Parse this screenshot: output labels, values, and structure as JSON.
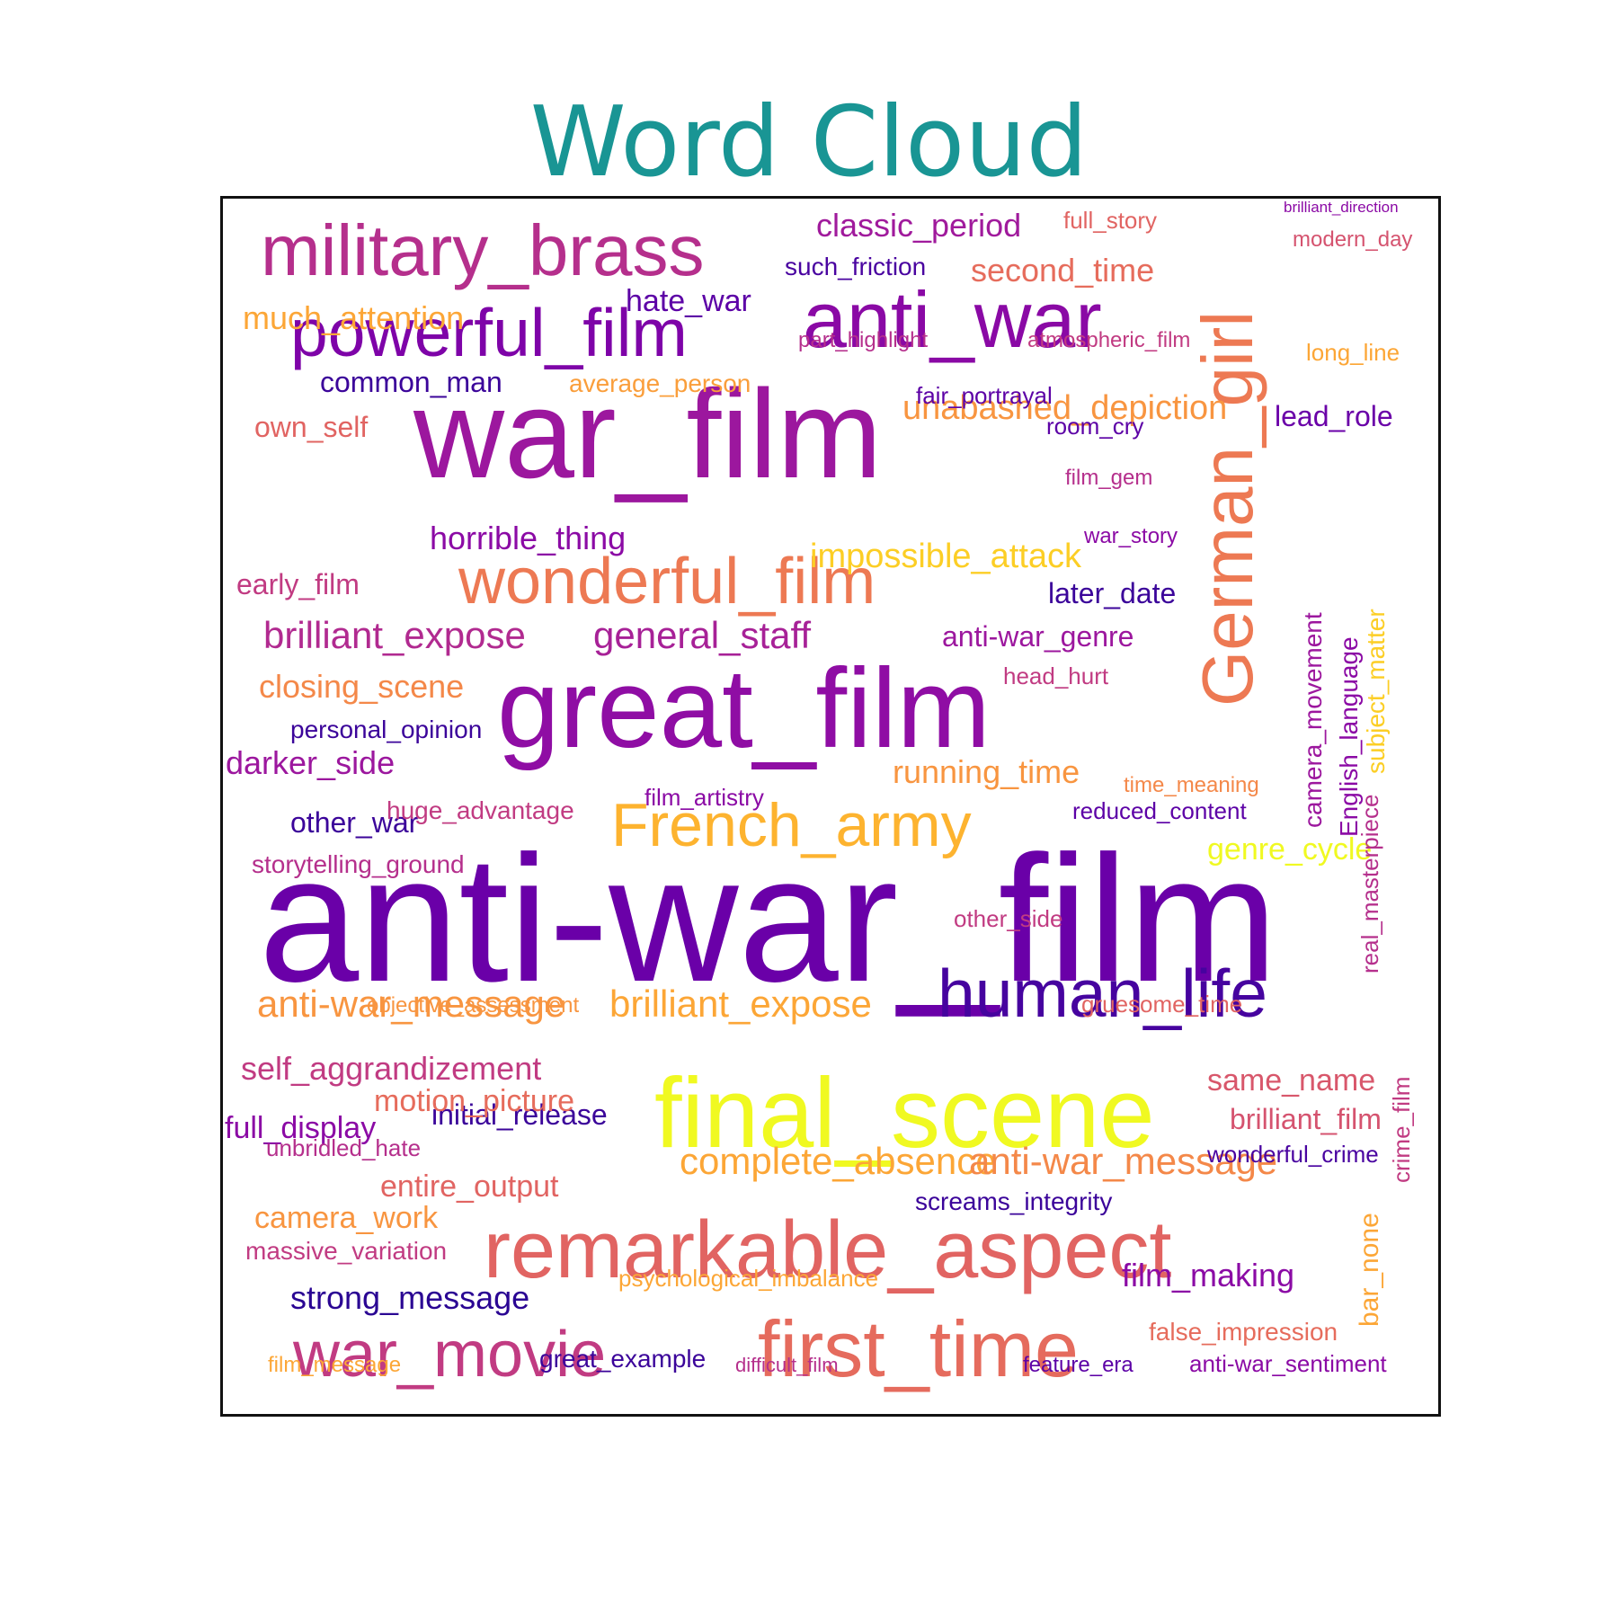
{
  "chart_data": {
    "type": "wordcloud",
    "title": "Word Cloud",
    "title_color": "#199594",
    "colormap": "plasma",
    "words": [
      {
        "text": "anti-war_film",
        "color": "#6a00a8"
      },
      {
        "text": "war_film",
        "color": "#9c179e"
      },
      {
        "text": "great_film",
        "color": "#8f0da4"
      },
      {
        "text": "final_scene",
        "color": "#f0f921"
      },
      {
        "text": "remarkable_aspect",
        "color": "#e16462"
      },
      {
        "text": "anti_war",
        "color": "#8a09a5"
      },
      {
        "text": "German_girl",
        "color": "#ed7953"
      },
      {
        "text": "military_brass",
        "color": "#b52f8c"
      },
      {
        "text": "powerful_film",
        "color": "#7e03a8"
      },
      {
        "text": "wonderful_film",
        "color": "#ed7953"
      },
      {
        "text": "human_life",
        "color": "#46039f"
      },
      {
        "text": "first_time",
        "color": "#e56b5d"
      },
      {
        "text": "war_movie",
        "color": "#c13b82"
      },
      {
        "text": "French_army",
        "color": "#fdb32f"
      },
      {
        "text": "brilliant_expose",
        "color": "#b12a90"
      },
      {
        "text": "general_staff",
        "color": "#a72197"
      },
      {
        "text": "anti-war_message",
        "color": "#f89540"
      },
      {
        "text": "brilliant_expose",
        "color": "#fca636"
      },
      {
        "text": "complete_absence",
        "color": "#fca636"
      },
      {
        "text": "anti-war_message",
        "color": "#f48849"
      },
      {
        "text": "unabashed_depiction",
        "color": "#f89540"
      },
      {
        "text": "impossible_attack",
        "color": "#fcce25"
      },
      {
        "text": "classic_period",
        "color": "#a01a9c"
      },
      {
        "text": "second_time",
        "color": "#e66c5c"
      },
      {
        "text": "hate_war",
        "color": "#5c01a6"
      },
      {
        "text": "much_attention",
        "color": "#fca636"
      },
      {
        "text": "common_man",
        "color": "#3b049a"
      },
      {
        "text": "average_person",
        "color": "#fa9e3b"
      },
      {
        "text": "such_friction",
        "color": "#4903a0"
      },
      {
        "text": "horrible_thing",
        "color": "#8b0aa5"
      },
      {
        "text": "running_time",
        "color": "#f89540"
      },
      {
        "text": "strong_message",
        "color": "#2a0593"
      },
      {
        "text": "initial_release",
        "color": "#3b049a"
      },
      {
        "text": "entire_output",
        "color": "#e16462"
      },
      {
        "text": "camera_work",
        "color": "#f89540"
      },
      {
        "text": "self_aggrandizement",
        "color": "#c13b82"
      },
      {
        "text": "motion_picture",
        "color": "#e66c5c"
      },
      {
        "text": "full_display",
        "color": "#8b0aa5"
      },
      {
        "text": "same_name",
        "color": "#d8576b"
      },
      {
        "text": "brilliant_film",
        "color": "#d5536f"
      },
      {
        "text": "film_making",
        "color": "#8b0aa5"
      },
      {
        "text": "lead_role",
        "color": "#6a00a8"
      },
      {
        "text": "later_date",
        "color": "#3b049a"
      },
      {
        "text": "anti-war_genre",
        "color": "#9c179e"
      },
      {
        "text": "closing_scene",
        "color": "#f48849"
      },
      {
        "text": "darker_side",
        "color": "#9c179e"
      },
      {
        "text": "other_war",
        "color": "#3b049a"
      },
      {
        "text": "own_self",
        "color": "#e16462"
      },
      {
        "text": "early_film",
        "color": "#c13b82"
      },
      {
        "text": "genre_cycle",
        "color": "#f0f921"
      },
      {
        "text": "English_language",
        "color": "#8b0aa5"
      },
      {
        "text": "subject_matter",
        "color": "#fcce25"
      },
      {
        "text": "camera_movement",
        "color": "#9c179e"
      },
      {
        "text": "real_masterpiece",
        "color": "#b52f8c"
      },
      {
        "text": "crime_film",
        "color": "#c13b82"
      },
      {
        "text": "bar_none",
        "color": "#fca636"
      },
      {
        "text": "false_impression",
        "color": "#e66c5c"
      },
      {
        "text": "wonderful_crime",
        "color": "#4903a0"
      },
      {
        "text": "screams_integrity",
        "color": "#3b049a"
      },
      {
        "text": "great_example",
        "color": "#3b049a"
      },
      {
        "text": "full_story",
        "color": "#e16462"
      },
      {
        "text": "modern_day",
        "color": "#d5536f"
      },
      {
        "text": "long_line",
        "color": "#fca636"
      },
      {
        "text": "room_cry",
        "color": "#5c01a6"
      },
      {
        "text": "head_hurt",
        "color": "#c13b82"
      },
      {
        "text": "film_gem",
        "color": "#b52f8c"
      },
      {
        "text": "war_story",
        "color": "#8b0aa5"
      },
      {
        "text": "part_highlight",
        "color": "#b52f8c"
      },
      {
        "text": "atmospheric_film",
        "color": "#c13b82"
      },
      {
        "text": "fair_portrayal",
        "color": "#5c01a6"
      },
      {
        "text": "personal_opinion",
        "color": "#3b049a"
      },
      {
        "text": "huge_advantage",
        "color": "#c13b82"
      },
      {
        "text": "film_artistry",
        "color": "#8b0aa5"
      },
      {
        "text": "reduced_content",
        "color": "#5c01a6"
      },
      {
        "text": "time_meaning",
        "color": "#f48849"
      },
      {
        "text": "gruesome_time",
        "color": "#e16462"
      },
      {
        "text": "other_side",
        "color": "#c13b82"
      },
      {
        "text": "anti-war_sentiment",
        "color": "#8b0aa5"
      },
      {
        "text": "feature_era",
        "color": "#5c01a6"
      },
      {
        "text": "difficult_film",
        "color": "#b52f8c"
      },
      {
        "text": "film_message",
        "color": "#fca636"
      },
      {
        "text": "psychological_imbalance",
        "color": "#fca636"
      },
      {
        "text": "massive_variation",
        "color": "#c13b82"
      },
      {
        "text": "unbridled_hate",
        "color": "#b52f8c"
      },
      {
        "text": "storytelling_ground",
        "color": "#b52f8c"
      },
      {
        "text": "objective_assessment",
        "color": "#f89540"
      },
      {
        "text": "brilliant_direction",
        "color": "#8b0aa5"
      }
    ]
  }
}
